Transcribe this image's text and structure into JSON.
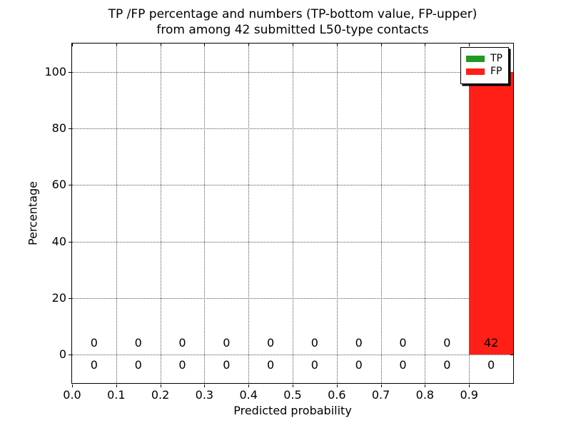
{
  "title": {
    "line1": "TP /FP percentage and numbers (TP-bottom value, FP-upper)",
    "line2": "from among 42 submitted L50-type contacts"
  },
  "chart_data": {
    "type": "bar",
    "subtype": "stacked-histogram",
    "title": "TP /FP percentage and numbers (TP-bottom value, FP-upper)\nfrom among 42 submitted L50-type contacts",
    "xlabel": "Predicted probability",
    "ylabel": "Percentage",
    "xlim": [
      0.0,
      1.0
    ],
    "ylim": [
      -10,
      110
    ],
    "grid": "dotted",
    "total_submitted": 42,
    "x_ticks": [
      0.0,
      0.1,
      0.2,
      0.3,
      0.4,
      0.5,
      0.6,
      0.7,
      0.8,
      0.9
    ],
    "x_tick_labels": [
      "0.0",
      "0.1",
      "0.2",
      "0.3",
      "0.4",
      "0.5",
      "0.6",
      "0.7",
      "0.8",
      "0.9"
    ],
    "y_ticks": [
      0,
      20,
      40,
      60,
      80,
      100
    ],
    "y_tick_labels": [
      "0",
      "20",
      "40",
      "60",
      "80",
      "100"
    ],
    "bin_edges": [
      0.0,
      0.1,
      0.2,
      0.3,
      0.4,
      0.5,
      0.6,
      0.7,
      0.8,
      0.9,
      1.0
    ],
    "series": [
      {
        "name": "TP",
        "color": "#229922",
        "percent": [
          0,
          0,
          0,
          0,
          0,
          0,
          0,
          0,
          0,
          0
        ],
        "counts": [
          0,
          0,
          0,
          0,
          0,
          0,
          0,
          0,
          0,
          0
        ],
        "count_row": "bottom"
      },
      {
        "name": "FP",
        "color": "#ff1f16",
        "percent": [
          0,
          0,
          0,
          0,
          0,
          0,
          0,
          0,
          0,
          100
        ],
        "counts": [
          0,
          0,
          0,
          0,
          0,
          0,
          0,
          0,
          0,
          42
        ],
        "count_row": "upper"
      }
    ],
    "legend": {
      "position": "upper-right",
      "entries": [
        {
          "label": "TP",
          "color": "#229922"
        },
        {
          "label": "FP",
          "color": "#ff1f16"
        }
      ]
    }
  }
}
